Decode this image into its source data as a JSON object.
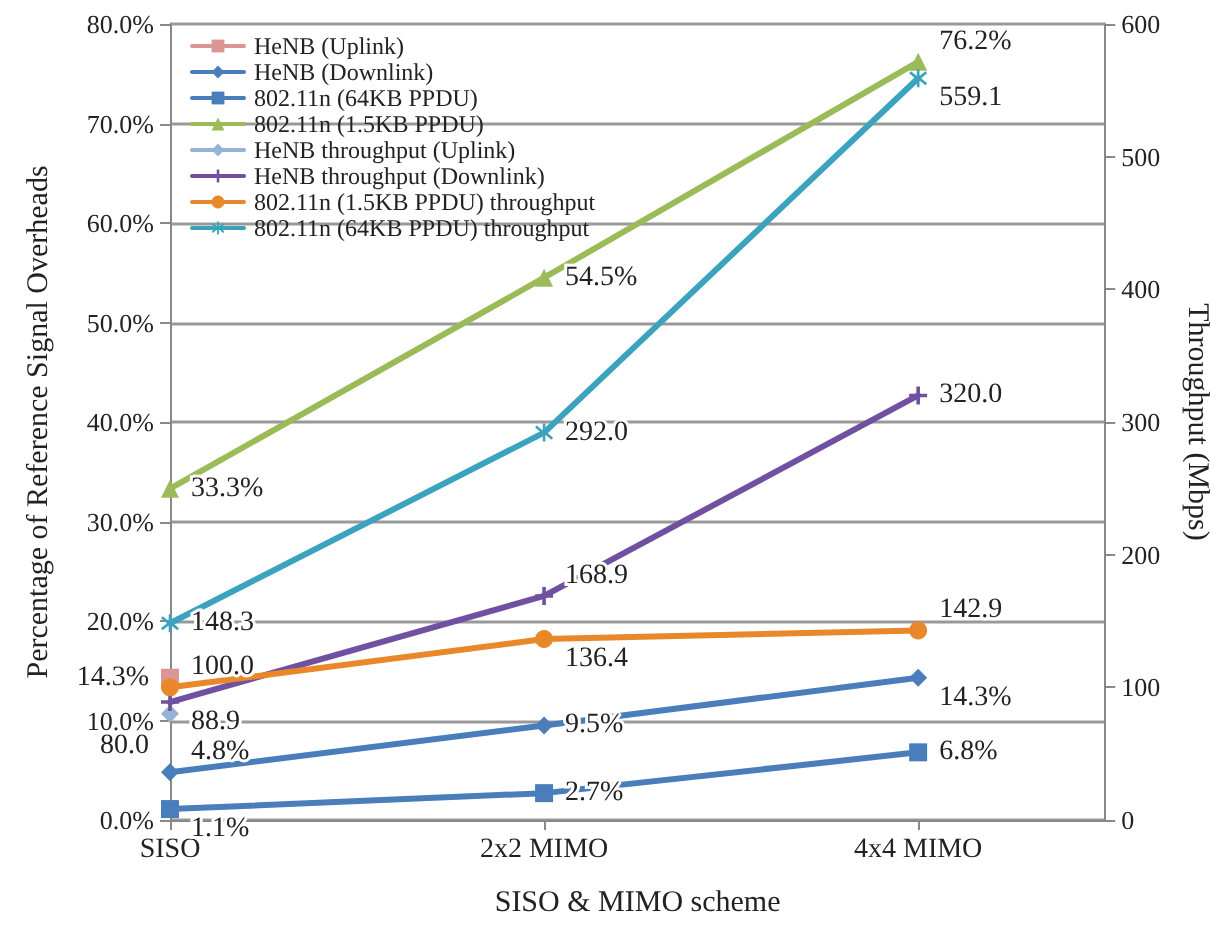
{
  "chart_data": {
    "type": "line",
    "xlabel": "SISO & MIMO scheme",
    "ylabel": "Percentage of Reference Signal Overheads",
    "y2label": "Throughput (Mbps)",
    "categories": [
      "SISO",
      "2x2 MIMO",
      "4x4 MIMO"
    ],
    "ylim": [
      0,
      80
    ],
    "yticks": [
      {
        "value": 0,
        "label": "0.0%"
      },
      {
        "value": 10,
        "label": "10.0%"
      },
      {
        "value": 20,
        "label": "20.0%"
      },
      {
        "value": 30,
        "label": "30.0%"
      },
      {
        "value": 40,
        "label": "40.0%"
      },
      {
        "value": 50,
        "label": "50.0%"
      },
      {
        "value": 60,
        "label": "60.0%"
      },
      {
        "value": 70,
        "label": "70.0%"
      },
      {
        "value": 80,
        "label": "80.0%"
      }
    ],
    "y2lim": [
      0,
      600
    ],
    "y2ticks": [
      0,
      100,
      200,
      300,
      400,
      500,
      600
    ],
    "grid": "y",
    "legend": "top left",
    "series": [
      {
        "name": "HeNB (Uplink)",
        "color": "#d99694",
        "marker": "square",
        "values": [
          14.3,
          null,
          null
        ],
        "value_labels": [
          "14.3%",
          null,
          null
        ]
      },
      {
        "name": "HeNB (Downlink)",
        "color": "#4a7ebb",
        "marker": "diamond",
        "values": [
          4.8,
          9.5,
          14.3
        ],
        "value_labels": [
          "4.8%",
          "9.5%",
          "14.3%"
        ]
      },
      {
        "name": "802.11n (64KB PPDU)",
        "color": "#4a7ebb",
        "marker": "square",
        "values": [
          1.1,
          2.7,
          6.8
        ],
        "value_labels": [
          "1.1%",
          "2.7%",
          "6.8%"
        ]
      },
      {
        "name": "802.11n (1.5KB PPDU)",
        "color": "#9bbb59",
        "marker": "triangle",
        "values": [
          33.3,
          54.5,
          76.2
        ],
        "value_labels": [
          "33.3%",
          "54.5%",
          "76.2%"
        ]
      },
      {
        "name": "HeNB throughput (Uplink)",
        "color": "#95b3d7",
        "marker": "diamond",
        "axis": "y2",
        "values": [
          80.0,
          null,
          null
        ],
        "value_labels": [
          "80.0",
          null,
          null
        ]
      },
      {
        "name": "HeNB throughput (Downlink)",
        "color": "#7050a0",
        "marker": "cross",
        "axis": "y2",
        "values": [
          88.9,
          168.9,
          320.0
        ],
        "value_labels": [
          "88.9",
          "168.9",
          "320.0"
        ]
      },
      {
        "name": "802.11n (1.5KB PPDU) throughput",
        "color": "#e8882a",
        "marker": "circle",
        "axis": "y2",
        "values": [
          100.0,
          136.4,
          142.9
        ],
        "value_labels": [
          "100.0",
          "136.4",
          "142.9"
        ]
      },
      {
        "name": "802.11n (64KB PPDU) throughput",
        "color": "#3ba3bd",
        "marker": "star",
        "axis": "y2",
        "values": [
          148.3,
          292.0,
          559.1
        ],
        "value_labels": [
          "148.3",
          "292.0",
          "559.1"
        ]
      }
    ]
  }
}
